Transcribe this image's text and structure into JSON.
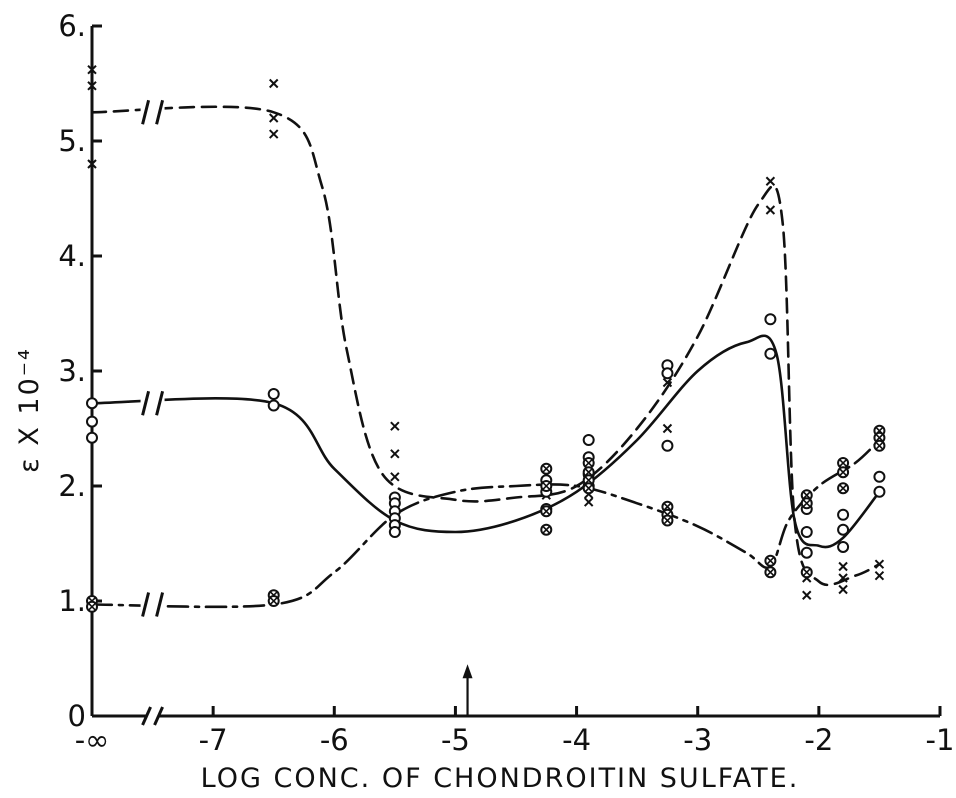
{
  "chart_data": {
    "type": "scatter",
    "title": "",
    "xlabel": "LOG CONC. OF CHONDROITIN SULFATE.",
    "ylabel": "ε X 10⁻⁴",
    "xlim": [
      -8,
      -1
    ],
    "ylim": [
      0,
      6
    ],
    "x_tick_labels": [
      "-∞",
      "-7",
      "-6",
      "-5",
      "-4",
      "-3",
      "-2",
      "-1"
    ],
    "x_tick_values": [
      -8,
      -7,
      -6,
      -5,
      -4,
      -3,
      -2,
      -1
    ],
    "y_tick_labels": [
      "0",
      "1.",
      "2.",
      "3.",
      "4.",
      "5.",
      "6."
    ],
    "y_tick_values": [
      0,
      1,
      2,
      3,
      4,
      5,
      6
    ],
    "axis_breaks": [
      -7.5
    ],
    "annotations": [
      {
        "type": "arrow",
        "x": -4.9,
        "y_from": 0,
        "y_to": 0.45
      }
    ],
    "grid": false,
    "series": [
      {
        "style": "dashed",
        "marker": "x",
        "points": [
          [
            -8,
            5.62
          ],
          [
            -8,
            5.48
          ],
          [
            -8,
            4.8
          ],
          [
            -6.5,
            5.5
          ],
          [
            -6.5,
            5.2
          ],
          [
            -6.5,
            5.06
          ],
          [
            -5.5,
            2.52
          ],
          [
            -5.5,
            2.28
          ],
          [
            -5.5,
            2.08
          ],
          [
            -4.25,
            2.0
          ],
          [
            -4.25,
            1.92
          ],
          [
            -3.9,
            1.86
          ],
          [
            -3.9,
            1.93
          ],
          [
            -3.25,
            3.05
          ],
          [
            -3.25,
            2.9
          ],
          [
            -3.25,
            2.5
          ],
          [
            -2.4,
            4.65
          ],
          [
            -2.4,
            4.4
          ],
          [
            -2.1,
            1.05
          ],
          [
            -2.1,
            1.2
          ],
          [
            -1.8,
            1.1
          ],
          [
            -1.8,
            1.2
          ],
          [
            -1.8,
            1.3
          ],
          [
            -1.5,
            1.22
          ],
          [
            -1.5,
            1.32
          ]
        ],
        "curve": [
          [
            -8,
            5.25
          ],
          [
            -6.5,
            5.25
          ],
          [
            -6.1,
            4.6
          ],
          [
            -5.9,
            3.2
          ],
          [
            -5.6,
            2.1
          ],
          [
            -5.0,
            1.88
          ],
          [
            -4.5,
            1.9
          ],
          [
            -4.0,
            2.0
          ],
          [
            -3.5,
            2.5
          ],
          [
            -3.0,
            3.3
          ],
          [
            -2.5,
            4.45
          ],
          [
            -2.3,
            4.3
          ],
          [
            -2.2,
            1.7
          ],
          [
            -2.0,
            1.17
          ],
          [
            -1.7,
            1.22
          ],
          [
            -1.5,
            1.32
          ]
        ]
      },
      {
        "style": "solid",
        "marker": "o",
        "points": [
          [
            -8,
            2.72
          ],
          [
            -8,
            2.56
          ],
          [
            -8,
            2.42
          ],
          [
            -6.5,
            2.8
          ],
          [
            -6.5,
            2.7
          ],
          [
            -5.5,
            1.9
          ],
          [
            -5.5,
            1.85
          ],
          [
            -5.5,
            1.78
          ],
          [
            -5.5,
            1.72
          ],
          [
            -5.5,
            1.66
          ],
          [
            -5.5,
            1.6
          ],
          [
            -4.25,
            2.05
          ],
          [
            -4.25,
            1.95
          ],
          [
            -4.25,
            1.8
          ],
          [
            -3.9,
            2.4
          ],
          [
            -3.9,
            2.25
          ],
          [
            -3.9,
            2.1
          ],
          [
            -3.9,
            2.0
          ],
          [
            -3.25,
            3.05
          ],
          [
            -3.25,
            2.98
          ],
          [
            -3.25,
            2.35
          ],
          [
            -2.4,
            3.45
          ],
          [
            -2.4,
            3.15
          ],
          [
            -2.1,
            1.8
          ],
          [
            -2.1,
            1.6
          ],
          [
            -2.1,
            1.42
          ],
          [
            -1.8,
            1.75
          ],
          [
            -1.8,
            1.62
          ],
          [
            -1.8,
            1.47
          ],
          [
            -1.5,
            2.08
          ],
          [
            -1.5,
            1.95
          ]
        ],
        "curve": [
          [
            -8,
            2.72
          ],
          [
            -6.5,
            2.72
          ],
          [
            -6.0,
            2.15
          ],
          [
            -5.5,
            1.7
          ],
          [
            -5.0,
            1.6
          ],
          [
            -4.5,
            1.7
          ],
          [
            -4.0,
            1.95
          ],
          [
            -3.5,
            2.4
          ],
          [
            -3.0,
            3.0
          ],
          [
            -2.6,
            3.25
          ],
          [
            -2.35,
            3.15
          ],
          [
            -2.2,
            1.7
          ],
          [
            -2.0,
            1.48
          ],
          [
            -1.8,
            1.55
          ],
          [
            -1.5,
            1.95
          ]
        ]
      },
      {
        "style": "dash-dot",
        "marker": "⊗",
        "points": [
          [
            -8,
            1.0
          ],
          [
            -8,
            0.95
          ],
          [
            -6.5,
            1.05
          ],
          [
            -6.5,
            1.0
          ],
          [
            -4.25,
            2.15
          ],
          [
            -4.25,
            2.0
          ],
          [
            -4.25,
            1.78
          ],
          [
            -4.25,
            1.62
          ],
          [
            -3.9,
            2.2
          ],
          [
            -3.9,
            2.12
          ],
          [
            -3.9,
            2.05
          ],
          [
            -3.9,
            1.98
          ],
          [
            -3.25,
            1.82
          ],
          [
            -3.25,
            1.75
          ],
          [
            -3.25,
            1.7
          ],
          [
            -2.4,
            1.35
          ],
          [
            -2.4,
            1.25
          ],
          [
            -2.1,
            1.92
          ],
          [
            -2.1,
            1.85
          ],
          [
            -2.1,
            1.25
          ],
          [
            -1.8,
            2.2
          ],
          [
            -1.8,
            2.12
          ],
          [
            -1.8,
            1.98
          ],
          [
            -1.5,
            2.48
          ],
          [
            -1.5,
            2.42
          ],
          [
            -1.5,
            2.35
          ]
        ],
        "curve": [
          [
            -8,
            0.97
          ],
          [
            -6.5,
            0.97
          ],
          [
            -6.0,
            1.25
          ],
          [
            -5.5,
            1.75
          ],
          [
            -5.0,
            1.95
          ],
          [
            -4.5,
            2.0
          ],
          [
            -4.0,
            2.0
          ],
          [
            -3.5,
            1.85
          ],
          [
            -3.0,
            1.65
          ],
          [
            -2.6,
            1.42
          ],
          [
            -2.4,
            1.3
          ],
          [
            -2.25,
            1.7
          ],
          [
            -2.0,
            2.0
          ],
          [
            -1.7,
            2.2
          ],
          [
            -1.5,
            2.4
          ]
        ]
      }
    ]
  }
}
